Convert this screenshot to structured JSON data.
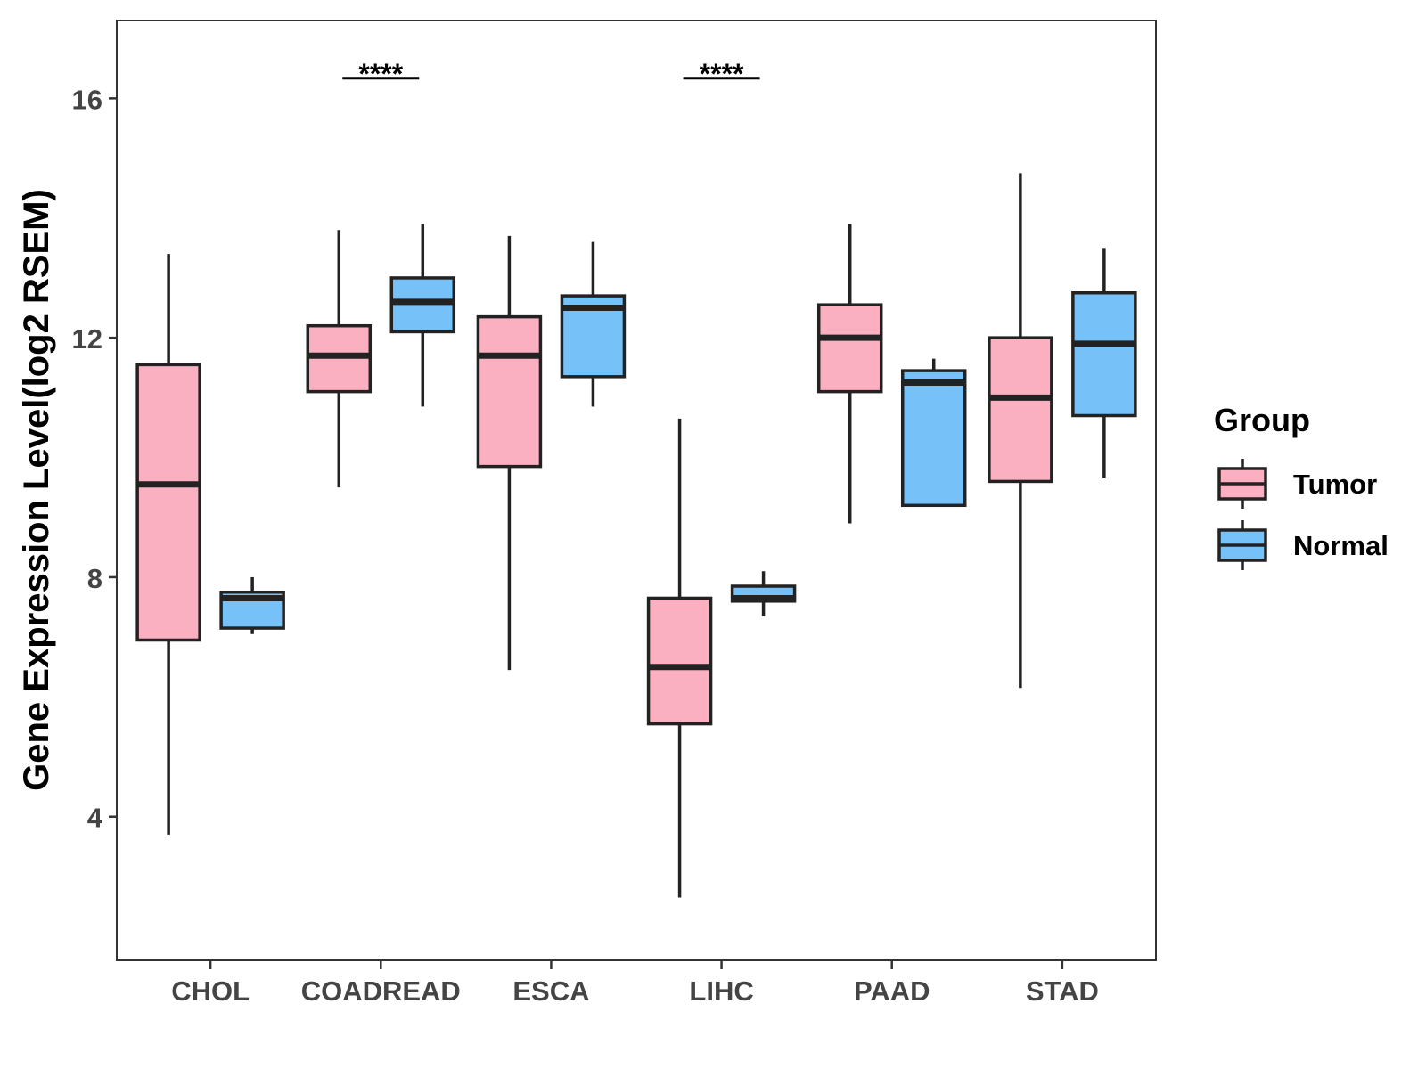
{
  "chart_data": {
    "type": "boxplot",
    "title": "",
    "xlabel": "",
    "ylabel": "Gene Expression Level(log2 RSEM)",
    "ylim": [
      1.6,
      17.3
    ],
    "yticks": [
      4,
      8,
      12,
      16
    ],
    "categories": [
      "CHOL",
      "COADREAD",
      "ESCA",
      "LIHC",
      "PAAD",
      "STAD"
    ],
    "legend": {
      "title": "Group",
      "position": "right",
      "entries": [
        {
          "name": "Tumor",
          "color": "#FBB0C2"
        },
        {
          "name": "Normal",
          "color": "#76C1F8"
        }
      ]
    },
    "series": [
      {
        "name": "Tumor",
        "color": "#FBB0C2",
        "boxes": [
          {
            "category": "CHOL",
            "whisker_low": 3.7,
            "q1": 6.95,
            "median": 9.55,
            "q3": 11.55,
            "whisker_high": 13.4
          },
          {
            "category": "COADREAD",
            "whisker_low": 9.5,
            "q1": 11.1,
            "median": 11.7,
            "q3": 12.2,
            "whisker_high": 13.8
          },
          {
            "category": "ESCA",
            "whisker_low": 6.45,
            "q1": 9.85,
            "median": 11.7,
            "q3": 12.35,
            "whisker_high": 13.7
          },
          {
            "category": "LIHC",
            "whisker_low": 2.65,
            "q1": 5.55,
            "median": 6.5,
            "q3": 7.65,
            "whisker_high": 10.65
          },
          {
            "category": "PAAD",
            "whisker_low": 8.9,
            "q1": 11.1,
            "median": 12.0,
            "q3": 12.55,
            "whisker_high": 13.9
          },
          {
            "category": "STAD",
            "whisker_low": 6.15,
            "q1": 9.6,
            "median": 11.0,
            "q3": 12.0,
            "whisker_high": 14.75
          }
        ]
      },
      {
        "name": "Normal",
        "color": "#76C1F8",
        "boxes": [
          {
            "category": "CHOL",
            "whisker_low": 7.05,
            "q1": 7.15,
            "median": 7.65,
            "q3": 7.75,
            "whisker_high": 8.0
          },
          {
            "category": "COADREAD",
            "whisker_low": 10.85,
            "q1": 12.1,
            "median": 12.6,
            "q3": 13.0,
            "whisker_high": 13.9
          },
          {
            "category": "ESCA",
            "whisker_low": 10.85,
            "q1": 11.35,
            "median": 12.5,
            "q3": 12.7,
            "whisker_high": 13.6
          },
          {
            "category": "LIHC",
            "whisker_low": 7.35,
            "q1": 7.6,
            "median": 7.65,
            "q3": 7.85,
            "whisker_high": 8.1
          },
          {
            "category": "PAAD",
            "whisker_low": 9.2,
            "q1": 9.2,
            "median": 11.25,
            "q3": 11.45,
            "whisker_high": 11.65
          },
          {
            "category": "STAD",
            "whisker_low": 9.65,
            "q1": 10.7,
            "median": 11.9,
            "q3": 12.75,
            "whisker_high": 13.5
          }
        ]
      }
    ],
    "annotations": [
      {
        "category": "COADREAD",
        "label": "****",
        "y": 16.5
      },
      {
        "category": "LIHC",
        "label": "****",
        "y": 16.5
      }
    ]
  }
}
